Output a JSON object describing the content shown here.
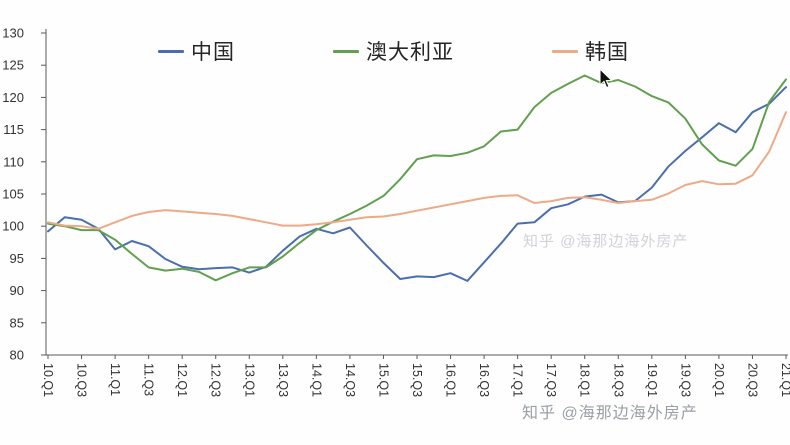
{
  "chart_data": {
    "type": "line",
    "title": "",
    "xlabel": "",
    "ylabel": "",
    "grid": false,
    "legend_position": "top",
    "ylim": [
      80,
      130
    ],
    "yticks": [
      80,
      85,
      90,
      95,
      100,
      105,
      110,
      115,
      120,
      125,
      130
    ],
    "x_categories": [
      "10.Q1",
      "10.Q2",
      "10.Q3",
      "10.Q4",
      "11.Q1",
      "11.Q2",
      "11.Q3",
      "11.Q4",
      "12.Q1",
      "12.Q2",
      "12.Q3",
      "12.Q4",
      "13.Q1",
      "13.Q2",
      "13.Q3",
      "13.Q4",
      "14.Q1",
      "14.Q2",
      "14.Q3",
      "14.Q4",
      "15.Q1",
      "15.Q2",
      "15.Q3",
      "15.Q4",
      "16.Q1",
      "16.Q2",
      "16.Q3",
      "16.Q4",
      "17.Q1",
      "17.Q2",
      "17.Q3",
      "17.Q4",
      "18.Q1",
      "18.Q2",
      "18.Q3",
      "18.Q4",
      "19.Q1",
      "19.Q2",
      "19.Q3",
      "19.Q4",
      "20.Q1",
      "20.Q2",
      "20.Q3",
      "20.Q4",
      "21.Q1"
    ],
    "x_tick_labels": [
      "10.Q1",
      "10.Q3",
      "11.Q1",
      "11.Q3",
      "12.Q1",
      "12.Q3",
      "13.Q1",
      "13.Q3",
      "14.Q1",
      "14.Q3",
      "15.Q1",
      "15.Q3",
      "16.Q1",
      "16.Q3",
      "17.Q1",
      "17.Q3",
      "18.Q1",
      "18.Q3",
      "19.Q1",
      "19.Q3",
      "20.Q1",
      "20.Q3",
      "21.Q1"
    ],
    "series": [
      {
        "name": "中国",
        "color": "#4a6fae",
        "values": [
          99.2,
          101.4,
          101.0,
          99.6,
          96.4,
          97.7,
          96.9,
          94.9,
          93.7,
          93.3,
          93.5,
          93.6,
          92.8,
          93.7,
          96.2,
          98.4,
          99.6,
          98.9,
          99.8,
          97.0,
          94.3,
          91.8,
          92.2,
          92.1,
          92.7,
          91.5,
          94.4,
          97.3,
          100.4,
          100.6,
          102.8,
          103.4,
          104.6,
          104.9,
          103.7,
          103.9,
          106.0,
          109.3,
          111.7,
          113.8,
          116.0,
          114.6,
          117.7,
          119.0,
          121.6
        ]
      },
      {
        "name": "澳大利亚",
        "color": "#61a04f",
        "values": [
          100.4,
          100.0,
          99.4,
          99.4,
          97.9,
          95.7,
          93.6,
          93.1,
          93.4,
          92.9,
          91.6,
          92.7,
          93.6,
          93.6,
          95.3,
          97.4,
          99.4,
          100.7,
          101.9,
          103.2,
          104.7,
          107.3,
          110.4,
          111.0,
          110.9,
          111.4,
          112.4,
          114.7,
          115.0,
          118.5,
          120.7,
          122.1,
          123.4,
          122.2,
          122.7,
          121.7,
          120.2,
          119.2,
          116.7,
          112.7,
          110.2,
          109.4,
          112.0,
          119.3,
          122.8
        ]
      },
      {
        "name": "韩国",
        "color": "#edaa88",
        "values": [
          100.6,
          100.1,
          100.0,
          99.6,
          100.6,
          101.6,
          102.2,
          102.5,
          102.3,
          102.1,
          101.9,
          101.6,
          101.1,
          100.6,
          100.1,
          100.1,
          100.3,
          100.6,
          101.0,
          101.4,
          101.5,
          101.9,
          102.4,
          102.9,
          103.4,
          103.9,
          104.4,
          104.7,
          104.8,
          103.6,
          103.9,
          104.4,
          104.5,
          104.1,
          103.6,
          103.9,
          104.1,
          105.1,
          106.4,
          107.0,
          106.5,
          106.6,
          107.9,
          111.6,
          117.7
        ]
      }
    ],
    "axis_color": "#595959",
    "label_color": "#333333"
  },
  "watermarks": {
    "middle": "知乎 @海那边海外房产",
    "bottom": "知乎 @海那边海外房产"
  }
}
